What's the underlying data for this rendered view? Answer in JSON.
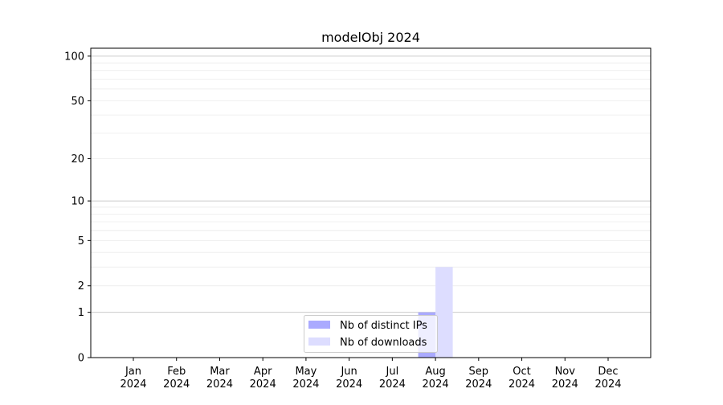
{
  "chart_data": {
    "type": "bar",
    "title": "modelObj 2024",
    "xlabel": "",
    "ylabel": "",
    "yscale": "log(1+y)",
    "ylim": [
      0,
      113
    ],
    "grid": true,
    "legend_position": "lower-center",
    "categories": [
      "Jan\n2024",
      "Feb\n2024",
      "Mar\n2024",
      "Apr\n2024",
      "May\n2024",
      "Jun\n2024",
      "Jul\n2024",
      "Aug\n2024",
      "Sep\n2024",
      "Oct\n2024",
      "Nov\n2024",
      "Dec\n2024"
    ],
    "y_ticks": [
      0,
      1,
      2,
      5,
      10,
      20,
      50,
      100
    ],
    "series": [
      {
        "name": "Nb of distinct IPs",
        "color": "#aaaaff",
        "values": [
          0,
          0,
          0,
          0,
          0,
          0,
          0,
          1,
          0,
          0,
          0,
          0
        ]
      },
      {
        "name": "Nb of downloads",
        "color": "#ddddff",
        "values": [
          0,
          0,
          0,
          0,
          0,
          0,
          0,
          3,
          0,
          0,
          0,
          0
        ]
      }
    ]
  }
}
